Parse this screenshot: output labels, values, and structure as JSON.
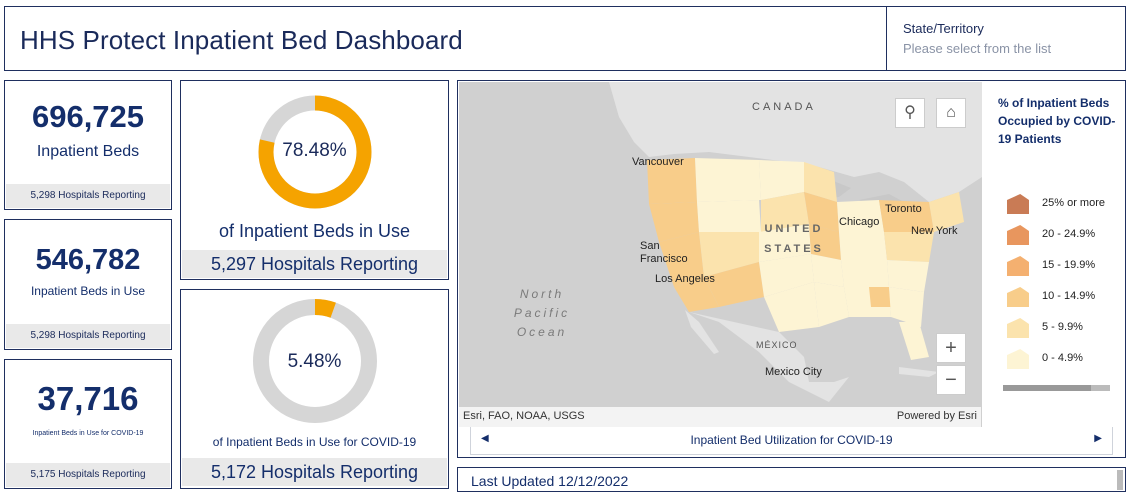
{
  "header": {
    "title": "HHS Protect Inpatient Bed Dashboard",
    "state_label": "State/Territory",
    "state_placeholder": "Please select from the list"
  },
  "stats": [
    {
      "value": "696,725",
      "label": "Inpatient Beds",
      "footer": "5,298 Hospitals Reporting"
    },
    {
      "value": "546,782",
      "label": "Inpatient Beds in Use",
      "footer": "5,298 Hospitals Reporting"
    },
    {
      "value": "37,716",
      "label": "Inpatient Beds in Use for COVID-19",
      "footer": "5,175 Hospitals Reporting"
    }
  ],
  "gauges": [
    {
      "percent_text": "78.48%",
      "percent": 78.48,
      "label": "of Inpatient Beds in Use",
      "footer": "5,297 Hospitals Reporting"
    },
    {
      "percent_text": "5.48%",
      "percent": 5.48,
      "label": "of Inpatient Beds in Use for COVID-19",
      "footer": "5,172 Hospitals Reporting"
    }
  ],
  "colors": {
    "navy": "#142e6b",
    "gauge_fill": "#f5a300",
    "gauge_track": "#d6d6d6"
  },
  "map": {
    "labels": {
      "canada": "CANADA",
      "united_states": "UNITED STATES",
      "mexico": "MÉXICO",
      "vancouver": "Vancouver",
      "san_francisco": "San Francisco",
      "los_angeles": "Los Angeles",
      "chicago": "Chicago",
      "toronto": "Toronto",
      "new_york": "New York",
      "mexico_city": "Mexico City",
      "ocean": "North Pacific Ocean"
    },
    "attribution_left": "Esri, FAO, NOAA, USGS",
    "attribution_right": "Powered by Esri",
    "icons": [
      "search-icon",
      "home-icon",
      "zoom-in-icon",
      "zoom-out-icon"
    ]
  },
  "legend": {
    "title": "% of Inpatient Beds Occupied by COVID-19 Patients",
    "items": [
      {
        "label": "25% or more",
        "color": "#c97b55"
      },
      {
        "label": "20 - 24.9%",
        "color": "#e8965e"
      },
      {
        "label": "15 - 19.9%",
        "color": "#f4b070"
      },
      {
        "label": "10 - 14.9%",
        "color": "#f8cd8a"
      },
      {
        "label": "5 - 9.9%",
        "color": "#fbe3ad"
      },
      {
        "label": "0 - 4.9%",
        "color": "#fdf4d4"
      }
    ]
  },
  "carousel": {
    "label": "Inpatient Bed Utilization for COVID-19",
    "prev": "◀",
    "next": "▶"
  },
  "footer": {
    "last_updated": "Last Updated 12/12/2022"
  }
}
